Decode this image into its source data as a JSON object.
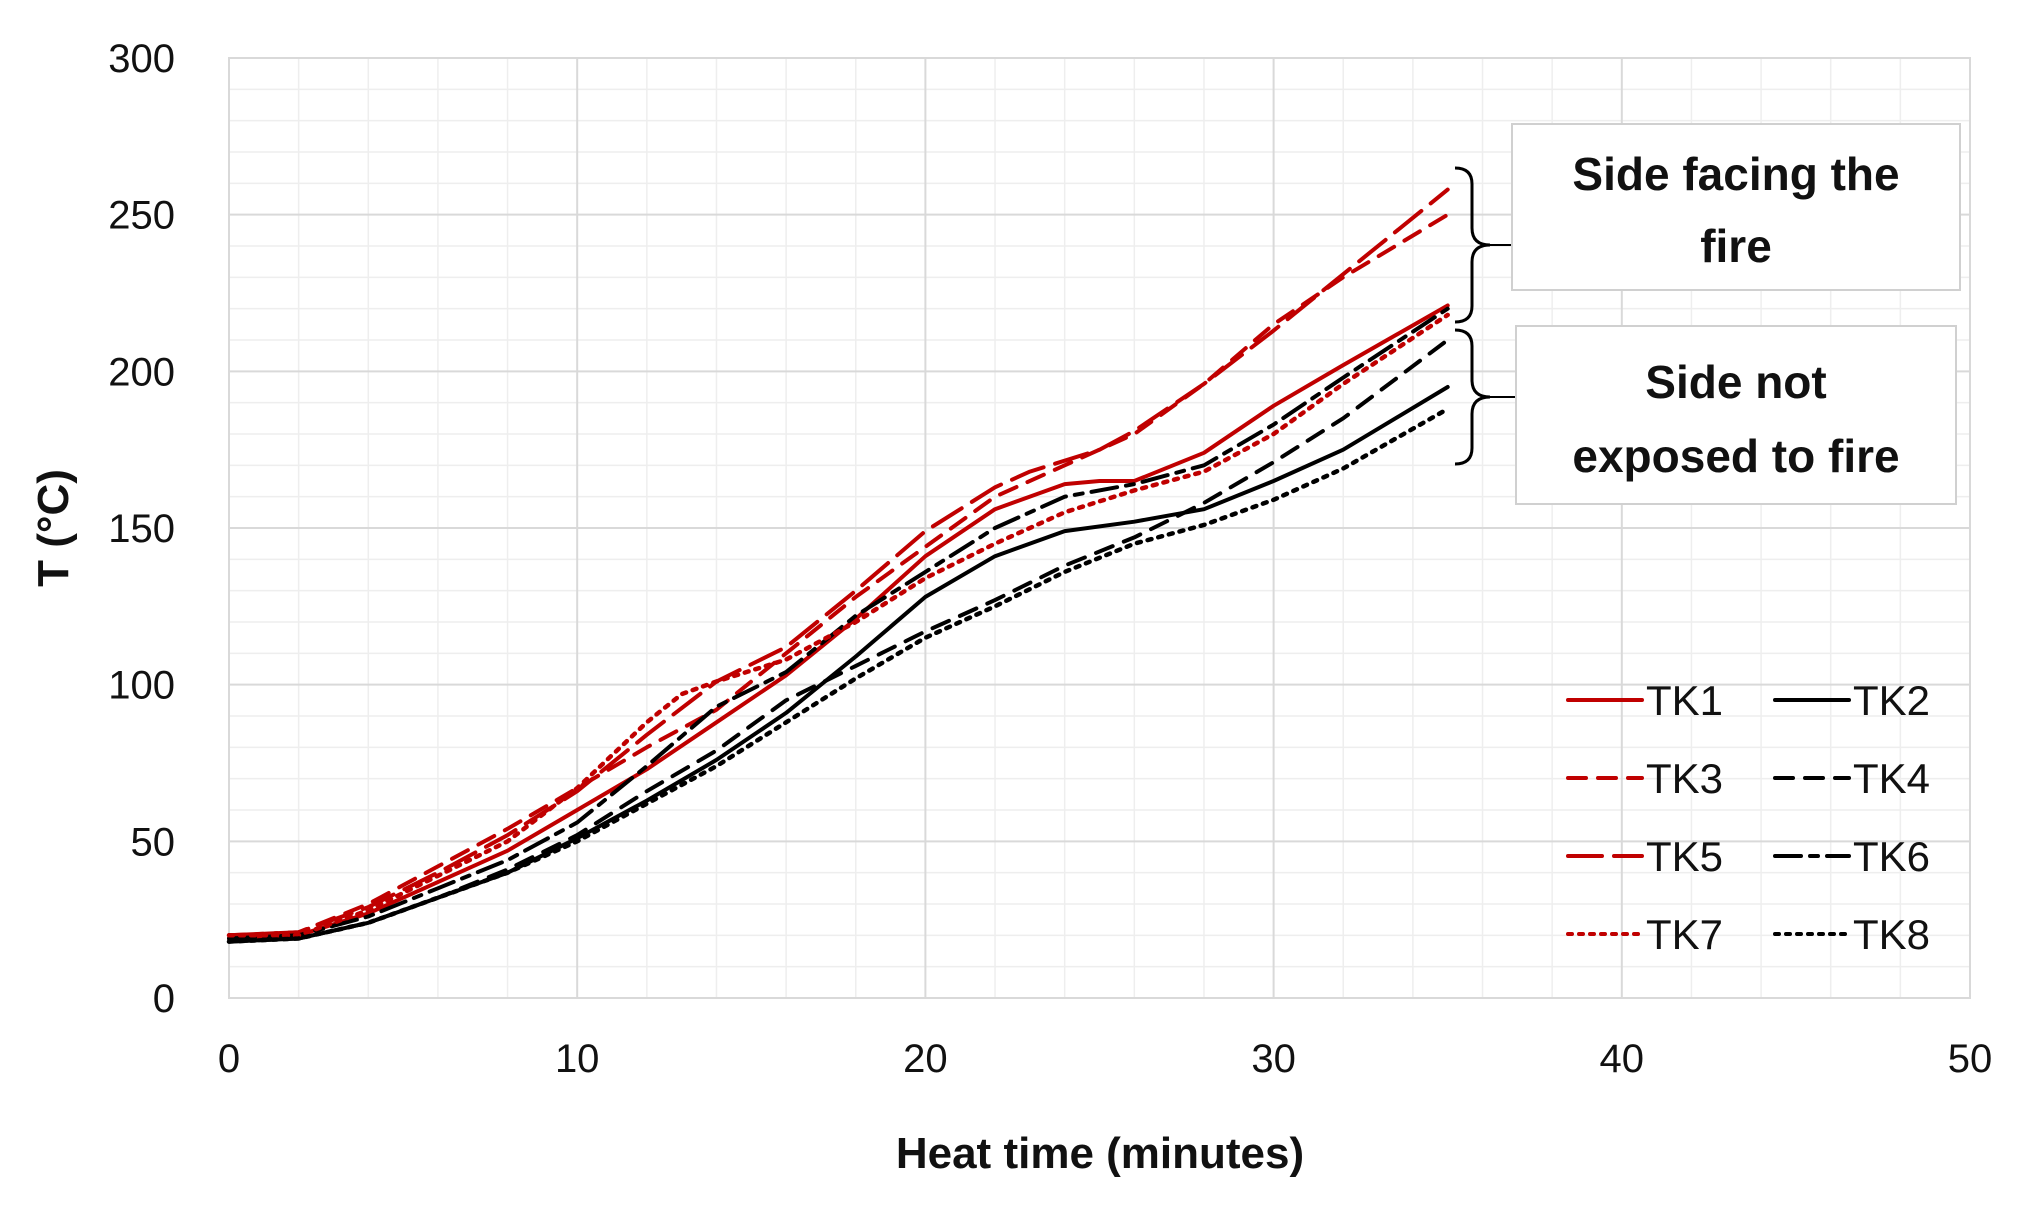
{
  "chart_data": {
    "type": "line",
    "title": "",
    "xlabel": "Heat time (minutes)",
    "ylabel": "T (°C)",
    "xlim": [
      0,
      50
    ],
    "ylim": [
      0,
      300
    ],
    "x_ticks": [
      0,
      10,
      20,
      30,
      40,
      50
    ],
    "y_ticks": [
      0,
      50,
      100,
      150,
      200,
      250,
      300
    ],
    "grid": "major and minor",
    "legend_position": "bottom-right",
    "series": [
      {
        "name": "TK1",
        "color": "#c00000",
        "style": "solid",
        "x": [
          0,
          2,
          4,
          6,
          8,
          10,
          12,
          14,
          16,
          18,
          20,
          22,
          24,
          25,
          26,
          28,
          30,
          32,
          35
        ],
        "y": [
          19,
          20,
          27,
          37,
          47,
          60,
          73,
          88,
          103,
          121,
          141,
          156,
          164,
          165,
          165,
          174,
          189,
          202,
          221
        ]
      },
      {
        "name": "TK2",
        "color": "#000000",
        "style": "solid",
        "x": [
          0,
          2,
          4,
          6,
          8,
          10,
          12,
          14,
          16,
          18,
          20,
          22,
          24,
          26,
          28,
          30,
          32,
          35
        ],
        "y": [
          18,
          19,
          24,
          32,
          40,
          51,
          63,
          76,
          91,
          109,
          128,
          141,
          149,
          152,
          156,
          165,
          175,
          195
        ]
      },
      {
        "name": "TK3",
        "color": "#c00000",
        "style": "dash",
        "x": [
          0,
          2,
          4,
          6,
          8,
          10,
          12,
          14,
          16,
          18,
          20,
          22,
          24,
          26,
          28,
          30,
          32,
          35
        ],
        "y": [
          20,
          21,
          30,
          42,
          54,
          67,
          80,
          92,
          110,
          128,
          144,
          160,
          170,
          180,
          196,
          215,
          230,
          250
        ]
      },
      {
        "name": "TK4",
        "color": "#000000",
        "style": "dash",
        "x": [
          0,
          2,
          4,
          6,
          8,
          10,
          12,
          14,
          16,
          18,
          20,
          22,
          24,
          26,
          28,
          30,
          32,
          35
        ],
        "y": [
          18,
          19,
          24,
          32,
          41,
          52,
          66,
          79,
          95,
          106,
          117,
          127,
          138,
          147,
          158,
          171,
          185,
          210
        ]
      },
      {
        "name": "TK5",
        "color": "#c00000",
        "style": "longdash",
        "x": [
          0,
          2,
          4,
          6,
          8,
          10,
          12,
          14,
          16,
          18,
          20,
          22,
          23,
          25,
          26,
          28,
          30,
          32,
          35
        ],
        "y": [
          20,
          21,
          29,
          40,
          52,
          66,
          84,
          101,
          112,
          130,
          149,
          163,
          168,
          175,
          181,
          196,
          213,
          231,
          258
        ]
      },
      {
        "name": "TK6",
        "color": "#000000",
        "style": "dashdot",
        "x": [
          0,
          2,
          4,
          6,
          8,
          10,
          12,
          14,
          16,
          18,
          20,
          22,
          24,
          26,
          28,
          30,
          32,
          35
        ],
        "y": [
          19,
          20,
          26,
          35,
          44,
          56,
          74,
          93,
          104,
          122,
          136,
          150,
          160,
          164,
          170,
          183,
          198,
          220
        ]
      },
      {
        "name": "TK7",
        "color": "#c00000",
        "style": "dot",
        "x": [
          0,
          2,
          4,
          6,
          8,
          10,
          12,
          13,
          14,
          16,
          18,
          20,
          22,
          24,
          26,
          28,
          30,
          32,
          35
        ],
        "y": [
          20,
          20,
          28,
          39,
          50,
          67,
          88,
          97,
          101,
          108,
          120,
          134,
          145,
          155,
          162,
          168,
          180,
          196,
          218
        ]
      },
      {
        "name": "TK8",
        "color": "#000000",
        "style": "dot",
        "x": [
          0,
          2,
          4,
          6,
          8,
          10,
          12,
          14,
          16,
          18,
          20,
          22,
          24,
          26,
          28,
          30,
          32,
          35
        ],
        "y": [
          18,
          19,
          24,
          32,
          40,
          50,
          62,
          74,
          88,
          102,
          115,
          125,
          136,
          145,
          151,
          159,
          169,
          188
        ]
      }
    ],
    "annotations": [
      {
        "lines": [
          "Side facing the",
          "fire"
        ],
        "brace_range": [
          220,
          262
        ]
      },
      {
        "lines": [
          "Side not",
          "exposed to fire"
        ],
        "brace_range": [
          170,
          220
        ]
      }
    ]
  }
}
